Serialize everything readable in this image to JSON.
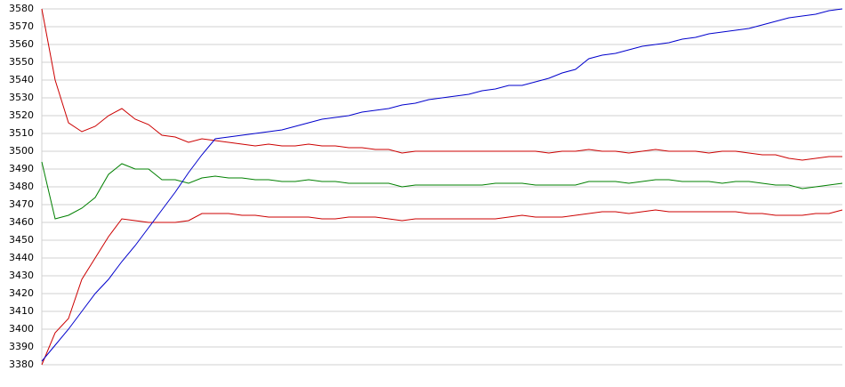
{
  "chart_data": {
    "type": "line",
    "ylim": [
      3380,
      3580
    ],
    "yticks": [
      3380,
      3390,
      3400,
      3410,
      3420,
      3430,
      3440,
      3450,
      3460,
      3470,
      3480,
      3490,
      3500,
      3510,
      3520,
      3530,
      3540,
      3550,
      3560,
      3570,
      3580
    ],
    "grid": true,
    "series": [
      {
        "color": "#cc0000",
        "values": [
          3580,
          3540,
          3516,
          3511,
          3514,
          3520,
          3524,
          3518,
          3515,
          3509,
          3508,
          3505,
          3507,
          3506,
          3505,
          3504,
          3503,
          3504,
          3503,
          3503,
          3504,
          3503,
          3503,
          3502,
          3502,
          3501,
          3501,
          3499,
          3500,
          3500,
          3500,
          3500,
          3500,
          3500,
          3500,
          3500,
          3500,
          3500,
          3499,
          3500,
          3500,
          3501,
          3500,
          3500,
          3499,
          3500,
          3501,
          3500,
          3500,
          3500,
          3499,
          3500,
          3500,
          3499,
          3498,
          3498,
          3496,
          3495,
          3496,
          3497,
          3497
        ]
      },
      {
        "color": "#008000",
        "values": [
          3494,
          3462,
          3464,
          3468,
          3474,
          3487,
          3493,
          3490,
          3490,
          3484,
          3484,
          3482,
          3485,
          3486,
          3485,
          3485,
          3484,
          3484,
          3483,
          3483,
          3484,
          3483,
          3483,
          3482,
          3482,
          3482,
          3482,
          3480,
          3481,
          3481,
          3481,
          3481,
          3481,
          3481,
          3482,
          3482,
          3482,
          3481,
          3481,
          3481,
          3481,
          3483,
          3483,
          3483,
          3482,
          3483,
          3484,
          3484,
          3483,
          3483,
          3483,
          3482,
          3483,
          3483,
          3482,
          3481,
          3481,
          3479,
          3480,
          3481,
          3482
        ]
      },
      {
        "color": "#cc0000",
        "values": [
          3380,
          3398,
          3406,
          3428,
          3440,
          3452,
          3462,
          3461,
          3460,
          3460,
          3460,
          3461,
          3465,
          3465,
          3465,
          3464,
          3464,
          3463,
          3463,
          3463,
          3463,
          3462,
          3462,
          3463,
          3463,
          3463,
          3462,
          3461,
          3462,
          3462,
          3462,
          3462,
          3462,
          3462,
          3462,
          3463,
          3464,
          3463,
          3463,
          3463,
          3464,
          3465,
          3466,
          3466,
          3465,
          3466,
          3467,
          3466,
          3466,
          3466,
          3466,
          3466,
          3466,
          3465,
          3465,
          3464,
          3464,
          3464,
          3465,
          3465,
          3467
        ]
      },
      {
        "color": "#0000cc",
        "values": [
          3382,
          3391,
          3400,
          3410,
          3420,
          3428,
          3438,
          3447,
          3457,
          3467,
          3477,
          3488,
          3498,
          3507,
          3508,
          3509,
          3510,
          3511,
          3512,
          3514,
          3516,
          3518,
          3519,
          3520,
          3522,
          3523,
          3524,
          3526,
          3527,
          3529,
          3530,
          3531,
          3532,
          3534,
          3535,
          3537,
          3537,
          3539,
          3541,
          3544,
          3546,
          3552,
          3554,
          3555,
          3557,
          3559,
          3560,
          3561,
          3563,
          3564,
          3566,
          3567,
          3568,
          3569,
          3571,
          3573,
          3575,
          3576,
          3577,
          3579,
          3580
        ]
      }
    ]
  }
}
